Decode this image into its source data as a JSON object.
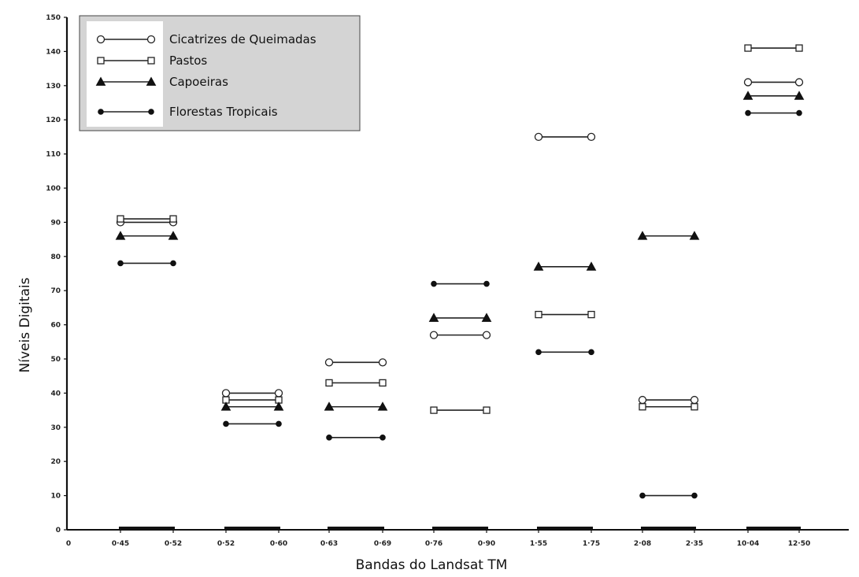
{
  "chart_data": {
    "type": "scatter",
    "title": "",
    "xlabel": "Bandas do Landsat TM",
    "ylabel": "Níveis Digitais",
    "ylim": [
      0,
      150
    ],
    "yticks": [
      0,
      10,
      20,
      30,
      40,
      50,
      60,
      70,
      80,
      90,
      100,
      110,
      120,
      130,
      140,
      150
    ],
    "ytick_labels": [
      "0",
      "10",
      "20",
      "30",
      "40",
      "50",
      "60",
      "70",
      "80",
      "90",
      "100",
      "110",
      "120",
      "130",
      "140",
      "150"
    ],
    "x_zero_label": "0",
    "bands": [
      {
        "start_label": "0·45",
        "end_label": "0·52"
      },
      {
        "start_label": "0·52",
        "end_label": "0·60"
      },
      {
        "start_label": "0·63",
        "end_label": "0·69"
      },
      {
        "start_label": "0·76",
        "end_label": "0·90"
      },
      {
        "start_label": "1·55",
        "end_label": "1·75"
      },
      {
        "start_label": "2·08",
        "end_label": "2·35"
      },
      {
        "start_label": "10·04",
        "end_label": "12·50"
      }
    ],
    "legend_position": "top-left",
    "series": [
      {
        "name": "Cicatrizes de Queimadas",
        "marker": "open-circle",
        "values": [
          90,
          40,
          49,
          57,
          115,
          38,
          131
        ]
      },
      {
        "name": "Pastos",
        "marker": "open-square",
        "values": [
          91,
          38,
          43,
          35,
          63,
          36,
          141
        ]
      },
      {
        "name": "Capoeiras",
        "marker": "filled-triangle",
        "values": [
          86,
          36,
          36,
          62,
          77,
          86,
          127
        ]
      },
      {
        "name": "Florestas Tropicais",
        "marker": "filled-circle",
        "values": [
          78,
          31,
          27,
          72,
          52,
          10,
          122
        ]
      }
    ]
  }
}
